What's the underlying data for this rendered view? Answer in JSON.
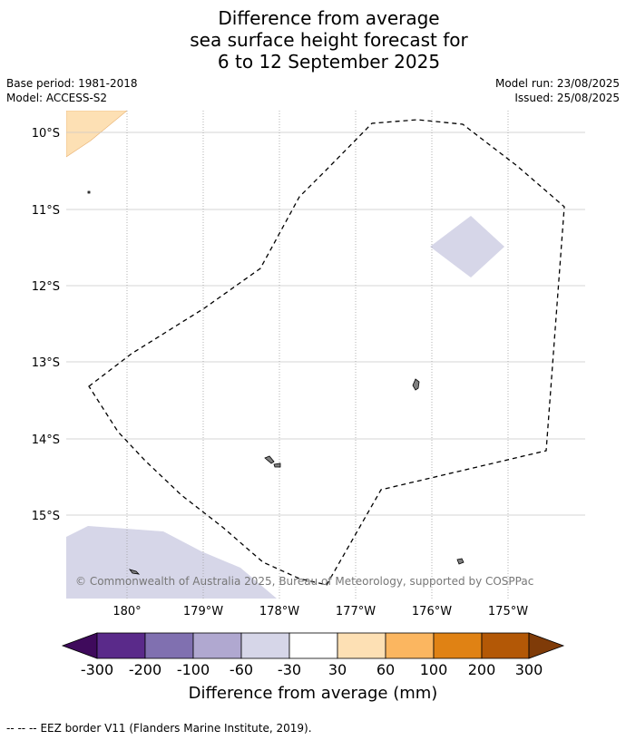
{
  "title": {
    "line1": "Difference from average",
    "line2": "sea surface height forecast for",
    "line3": "6 to 12 September 2025"
  },
  "meta": {
    "base_period": "Base period: 1981-2018",
    "model": "Model: ACCESS-S2",
    "model_run": "Model run: 23/08/2025",
    "issued": "Issued: 25/08/2025"
  },
  "map": {
    "lat_labels": [
      "10°S",
      "11°S",
      "12°S",
      "13°S",
      "14°S",
      "15°S"
    ],
    "lon_labels": [
      "180°",
      "179°W",
      "178°W",
      "177°W",
      "176°W",
      "175°W"
    ],
    "copyright": "© Commonwealth of Australia 2025, Bureau of Meteorology, supported by COSPPac",
    "colors": {
      "light_purple_fill": "#d6d6e8",
      "light_orange_fill": "#fde0b4",
      "land": "#808080",
      "gridline": "#c8c8c8"
    }
  },
  "colorbar": {
    "label": "Difference from average (mm)",
    "ticks": [
      "-300",
      "-200",
      "-100",
      "-60",
      "-30",
      "30",
      "60",
      "100",
      "200",
      "300"
    ],
    "colors": [
      "#3f0a5c",
      "#5a2a8a",
      "#8070b0",
      "#b0a8d0",
      "#d6d6e8",
      "#ffffff",
      "#fde0b4",
      "#fbb660",
      "#e08214",
      "#b35806",
      "#7f3b08"
    ]
  },
  "footer": {
    "legend_symbol": "-- -- --",
    "legend_text": "EEZ border V11 (Flanders Marine Institute, 2019)."
  }
}
